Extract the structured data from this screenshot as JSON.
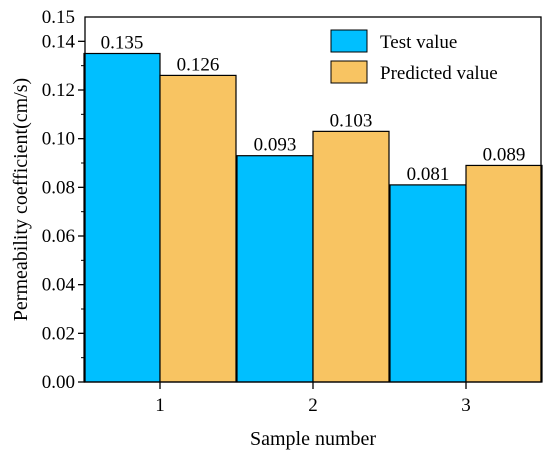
{
  "chart_data": {
    "type": "bar",
    "categories": [
      "1",
      "2",
      "3"
    ],
    "series": [
      {
        "name": "Test value",
        "values": [
          0.135,
          0.093,
          0.081
        ],
        "labels": [
          "0.135",
          "0.093",
          "0.081"
        ],
        "color": "#00BFFF"
      },
      {
        "name": "Predicted value",
        "values": [
          0.126,
          0.103,
          0.089
        ],
        "labels": [
          "0.126",
          "0.103",
          "0.089"
        ],
        "color": "#F8C462"
      }
    ],
    "xlabel": "Sample number",
    "ylabel": "Permeability coefficient(cm/s)",
    "ylim": [
      0,
      0.15
    ],
    "yticks": [
      "0.00",
      "0.02",
      "0.04",
      "0.06",
      "0.08",
      "0.10",
      "0.12",
      "0.14"
    ],
    "ytick_values": [
      0,
      0.02,
      0.04,
      0.06,
      0.08,
      0.1,
      0.12,
      0.14
    ],
    "ytop_label": "0.15",
    "legend_position": "top-right",
    "grid": false
  }
}
